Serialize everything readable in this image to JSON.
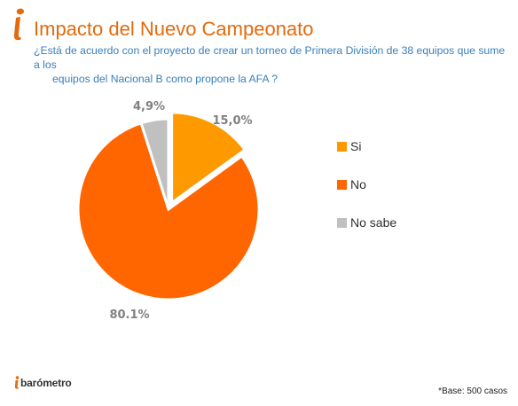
{
  "header": {
    "title": "Impacto del Nuevo Campeonato",
    "subtitle_line1": "¿Está de acuerdo con el proyecto de crear un torneo de Primera División de 38 equipos que sume a los",
    "subtitle_line2": "equipos del Nacional B como propone la AFA ?"
  },
  "chart_data": {
    "type": "pie",
    "categories": [
      "Si",
      "No",
      "No sabe"
    ],
    "values": [
      15.0,
      80.1,
      4.9
    ],
    "value_labels": [
      "15,0%",
      "80.1%",
      "4,9%"
    ],
    "colors": [
      "#ff9900",
      "#ff6600",
      "#c0c0c0"
    ],
    "exploded": [
      "Si"
    ],
    "legend": "right",
    "title": "Impacto del Nuevo Campeonato"
  },
  "footer": {
    "logo_text": "barómetro",
    "base_note": "*Base: 500 casos"
  },
  "colors": {
    "title": "#e46a0c",
    "subtitle": "#3a7fb8",
    "brand": "#e46a0c"
  }
}
